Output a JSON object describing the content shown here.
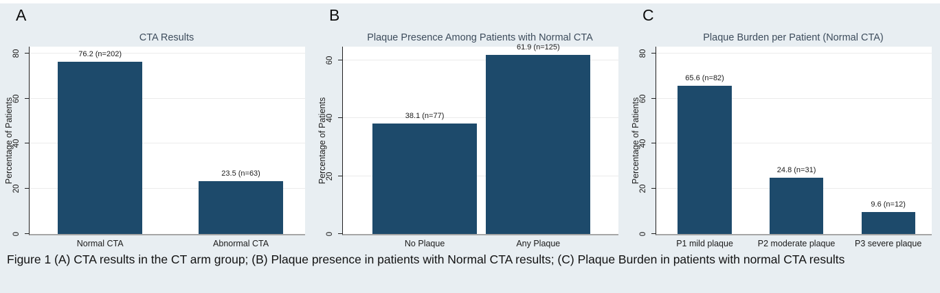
{
  "figure": {
    "caption": "Figure 1 (A) CTA results in the CT arm group; (B) Plaque presence in patients with Normal CTA results; (C) Plaque Burden in patients with normal CTA results"
  },
  "colors": {
    "bar_fill": "#1d4a6b",
    "page_bg": "#e8eef2",
    "plot_bg": "#ffffff",
    "grid": "#ebebeb",
    "baseline": "#a6a6a6",
    "axis": "#1f1f1f",
    "title_text": "#3d4c5c",
    "label_text": "#1a1a1a"
  },
  "chart_data": [
    {
      "type": "bar",
      "panel_letter": "A",
      "title": "CTA Results",
      "xlabel": "",
      "ylabel": "Percentage of Patients",
      "categories": [
        "Normal CTA",
        "Abnormal CTA"
      ],
      "values": [
        76.2,
        23.5
      ],
      "counts": [
        202,
        63
      ],
      "bar_labels": [
        "76.2 (n=202)",
        "23.5 (n=63)"
      ],
      "yticks": [
        0,
        20,
        40,
        60,
        80
      ],
      "ylim": [
        0,
        83
      ],
      "grid": true,
      "legend": "none",
      "layout": {
        "bar_centers_pct": [
          25.6,
          76.7
        ],
        "bar_width_pct": 30.8
      }
    },
    {
      "type": "bar",
      "panel_letter": "B",
      "title": "Plaque Presence Among Patients with Normal CTA",
      "xlabel": "",
      "ylabel": "Percentage of Patients",
      "categories": [
        "No Plaque",
        "Any Plaque"
      ],
      "values": [
        38.1,
        61.9
      ],
      "counts": [
        77,
        125
      ],
      "bar_labels": [
        "38.1 (n=77)",
        "61.9 (n=125)"
      ],
      "yticks": [
        0,
        20,
        40,
        60
      ],
      "ylim": [
        0,
        64.7
      ],
      "grid": true,
      "legend": "none",
      "layout": {
        "bar_centers_pct": [
          29.7,
          70.9
        ],
        "bar_width_pct": 38.0
      }
    },
    {
      "type": "bar",
      "panel_letter": "C",
      "title": "Plaque Burden per Patient (Normal CTA)",
      "xlabel": "",
      "ylabel": "Percentage of Patients",
      "categories": [
        "P1 mild plaque",
        "P2 moderate plaque",
        "P3 severe plaque"
      ],
      "values": [
        65.6,
        24.8,
        9.6
      ],
      "counts": [
        82,
        31,
        12
      ],
      "bar_labels": [
        "65.6 (n=82)",
        "24.8 (n=31)",
        "9.6 (n=12)"
      ],
      "yticks": [
        0,
        20,
        40,
        60,
        80
      ],
      "ylim": [
        0,
        83
      ],
      "grid": true,
      "legend": "none",
      "layout": {
        "bar_centers_pct": [
          17.6,
          50.9,
          84.2
        ],
        "bar_width_pct": 19.5
      }
    }
  ]
}
